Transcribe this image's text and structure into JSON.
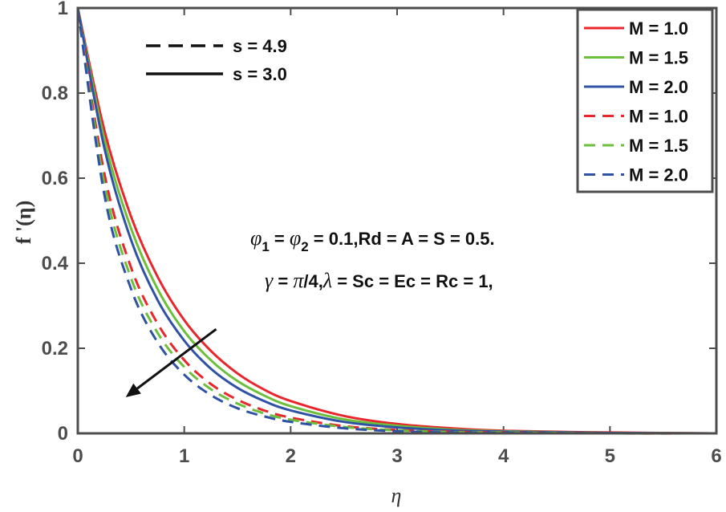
{
  "chart_data": {
    "type": "line",
    "xlabel": "η",
    "ylabel": "f '(η)",
    "xlim": [
      0,
      6
    ],
    "ylim": [
      0,
      1
    ],
    "xticks": [
      "0",
      "1",
      "2",
      "3",
      "4",
      "5",
      "6"
    ],
    "yticks": [
      "0",
      "0.2",
      "0.4",
      "0.6",
      "0.8",
      "1"
    ],
    "grid": false,
    "legend_position": "top-right",
    "style_legend": [
      {
        "label": "s = 4.9",
        "dash": "dashed"
      },
      {
        "label": "s = 3.0",
        "dash": "solid"
      }
    ],
    "x": [
      0,
      0.25,
      0.5,
      0.75,
      1,
      1.25,
      1.5,
      1.75,
      2,
      2.5,
      3,
      3.5,
      4,
      5,
      6
    ],
    "series": [
      {
        "name": "M = 1.0",
        "color": "#e8262b",
        "dash": "solid",
        "values": [
          1.0,
          0.712,
          0.51,
          0.368,
          0.266,
          0.194,
          0.141,
          0.103,
          0.076,
          0.041,
          0.022,
          0.012,
          0.006,
          0.002,
          0.0
        ]
      },
      {
        "name": "M = 1.5",
        "color": "#6cbf3c",
        "dash": "solid",
        "values": [
          1.0,
          0.69,
          0.482,
          0.339,
          0.24,
          0.172,
          0.123,
          0.089,
          0.064,
          0.033,
          0.018,
          0.009,
          0.005,
          0.001,
          0.0
        ]
      },
      {
        "name": "M = 2.0",
        "color": "#2f52a4",
        "dash": "solid",
        "values": [
          1.0,
          0.67,
          0.455,
          0.313,
          0.218,
          0.152,
          0.107,
          0.076,
          0.054,
          0.027,
          0.014,
          0.007,
          0.004,
          0.001,
          0.0
        ]
      },
      {
        "name": "M = 1.0",
        "color": "#e8262b",
        "dash": "dashed",
        "values": [
          1.0,
          0.61,
          0.39,
          0.258,
          0.172,
          0.116,
          0.079,
          0.054,
          0.037,
          0.017,
          0.008,
          0.004,
          0.002,
          0.0,
          0.0
        ]
      },
      {
        "name": "M = 1.5",
        "color": "#6cbf3c",
        "dash": "dashed",
        "values": [
          1.0,
          0.585,
          0.365,
          0.236,
          0.156,
          0.104,
          0.07,
          0.047,
          0.032,
          0.015,
          0.007,
          0.003,
          0.002,
          0.0,
          0.0
        ]
      },
      {
        "name": "M = 2.0",
        "color": "#2f52a4",
        "dash": "dashed",
        "values": [
          1.0,
          0.56,
          0.34,
          0.214,
          0.138,
          0.09,
          0.059,
          0.04,
          0.027,
          0.012,
          0.005,
          0.002,
          0.001,
          0.0,
          0.0
        ]
      }
    ],
    "annotations": {
      "line1_a": "= ",
      "line1_b": " = 0.1,Rd = A = S = 0.5.",
      "line2_a": " = ",
      "line2_b": "/4,",
      "line2_c": " = Sc = Ec = Rc = 1,",
      "phi": "φ",
      "sub1": "1",
      "sub2": "2",
      "gamma": "γ",
      "pi": "π",
      "lambda": "λ"
    },
    "arrow": {
      "from": [
        1.3,
        0.245
      ],
      "to": [
        0.45,
        0.085
      ],
      "meaning": "increasing M"
    },
    "axis_color": "#4d4d4d"
  }
}
